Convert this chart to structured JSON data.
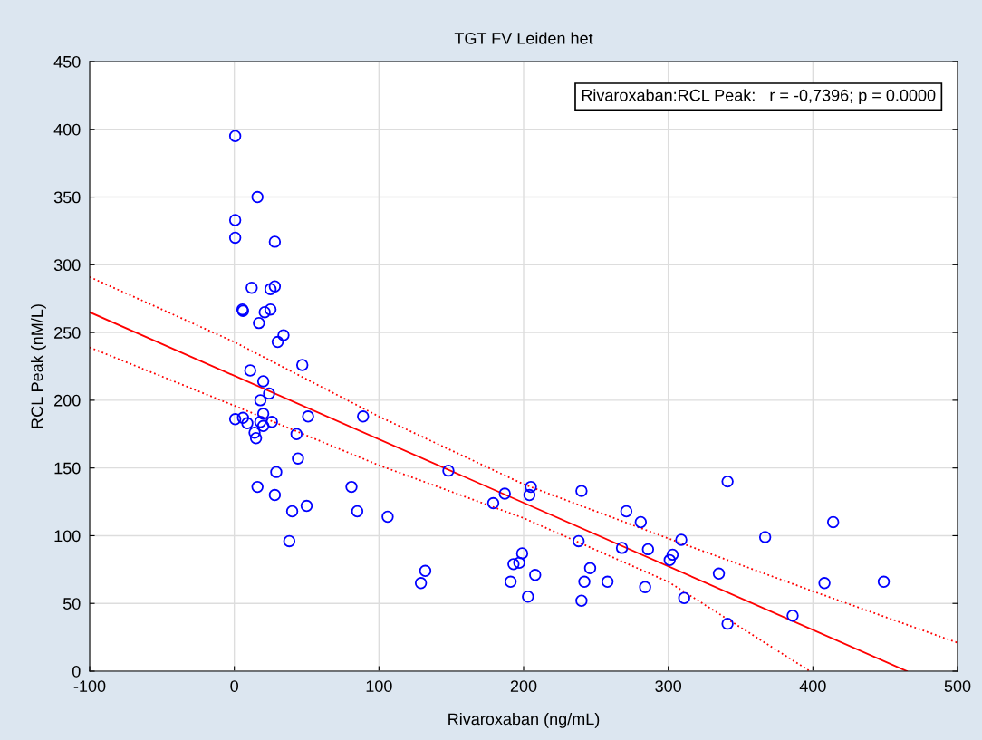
{
  "chart_data": {
    "type": "scatter",
    "title": "TGT FV Leiden het",
    "xlabel": "Rivaroxaban (ng/mL)",
    "ylabel": "RCL Peak (nM/L)",
    "xlim": [
      -100,
      500
    ],
    "ylim": [
      0,
      450
    ],
    "xticks": [
      -100,
      0,
      100,
      200,
      300,
      400,
      500
    ],
    "yticks": [
      0,
      50,
      100,
      150,
      200,
      250,
      300,
      350,
      400,
      450
    ],
    "grid": true,
    "marker": "circle",
    "annotations": [
      "Rivaroxaban:RCL Peak:   r = -0,7396; p = 0.0000"
    ],
    "series": [
      {
        "color": "#0000ff",
        "x": [
          0.6,
          16,
          0.6,
          0.6,
          28,
          12,
          25,
          28,
          5.6,
          6,
          21,
          25,
          17,
          34,
          30,
          47,
          11,
          20,
          24,
          18,
          0.6,
          6,
          9,
          18,
          20,
          20,
          26,
          14,
          15,
          51,
          43,
          44,
          29,
          16,
          28,
          50,
          40,
          38,
          81,
          85,
          106,
          89,
          148,
          129,
          132,
          187,
          179,
          205,
          204,
          199,
          193,
          197,
          191,
          203,
          208,
          240,
          238,
          246,
          242,
          240,
          258,
          271,
          281,
          268,
          286,
          284,
          303,
          301,
          309,
          311,
          341,
          335,
          341,
          367,
          386,
          414,
          408,
          449
        ],
        "values": [
          395,
          350,
          333,
          320,
          317,
          283,
          282,
          284,
          267,
          266,
          265,
          267,
          257,
          248,
          243,
          226,
          222,
          214,
          205,
          200,
          186,
          187,
          183,
          184,
          181,
          190,
          184,
          176,
          172,
          188,
          175,
          157,
          147,
          136,
          130,
          122,
          118,
          96,
          136,
          118,
          114,
          188,
          148,
          65,
          74,
          131,
          124,
          136,
          130,
          87,
          79,
          80,
          66,
          55,
          71,
          133,
          96,
          76,
          66,
          52,
          66,
          118,
          110,
          91,
          90,
          62,
          86,
          82,
          97,
          54,
          140,
          72,
          35,
          99,
          41,
          110,
          65,
          66
        ]
      },
      {
        "type": "line",
        "color": "#ff0000",
        "line_style": "solid",
        "marker": "none",
        "x": [
          -100,
          465
        ],
        "values": [
          265,
          0
        ]
      },
      {
        "type": "line",
        "color": "#ff0000",
        "line_style": "dotted",
        "marker": "none",
        "x": [
          -100,
          0,
          100,
          200,
          300,
          400,
          500
        ],
        "values": [
          291,
          243,
          188,
          138,
          98,
          59,
          21
        ]
      },
      {
        "type": "line",
        "color": "#ff0000",
        "line_style": "dotted",
        "marker": "none",
        "x": [
          -100,
          0,
          100,
          200,
          300,
          398
        ],
        "values": [
          239,
          196,
          152,
          113,
          66,
          0
        ]
      }
    ]
  }
}
